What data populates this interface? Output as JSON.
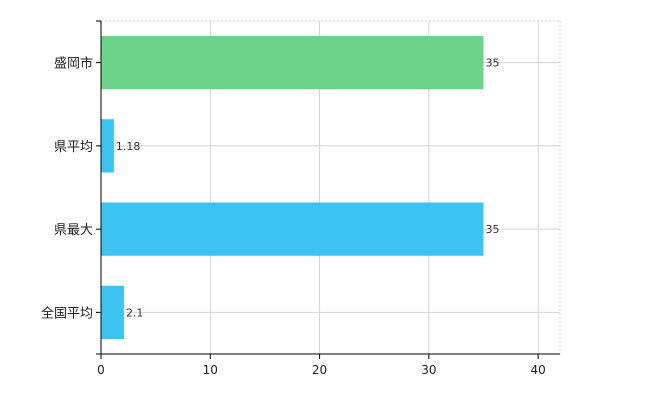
{
  "chart_data": {
    "type": "bar",
    "orientation": "horizontal",
    "title": "",
    "xlabel": "",
    "ylabel": "",
    "categories": [
      "盛岡市",
      "県平均",
      "県最大",
      "全国平均"
    ],
    "values": [
      35,
      1.18,
      35,
      2.1
    ],
    "data_labels": [
      "35",
      "1.18",
      "35",
      "2.1"
    ],
    "bar_colors": [
      "#6dd38a",
      "#3cc3f2",
      "#3cc3f2",
      "#3cc3f2"
    ],
    "xlim": [
      0,
      42
    ],
    "xticks": [
      0,
      10,
      20,
      30,
      40
    ],
    "grid": true,
    "legend": "none"
  }
}
